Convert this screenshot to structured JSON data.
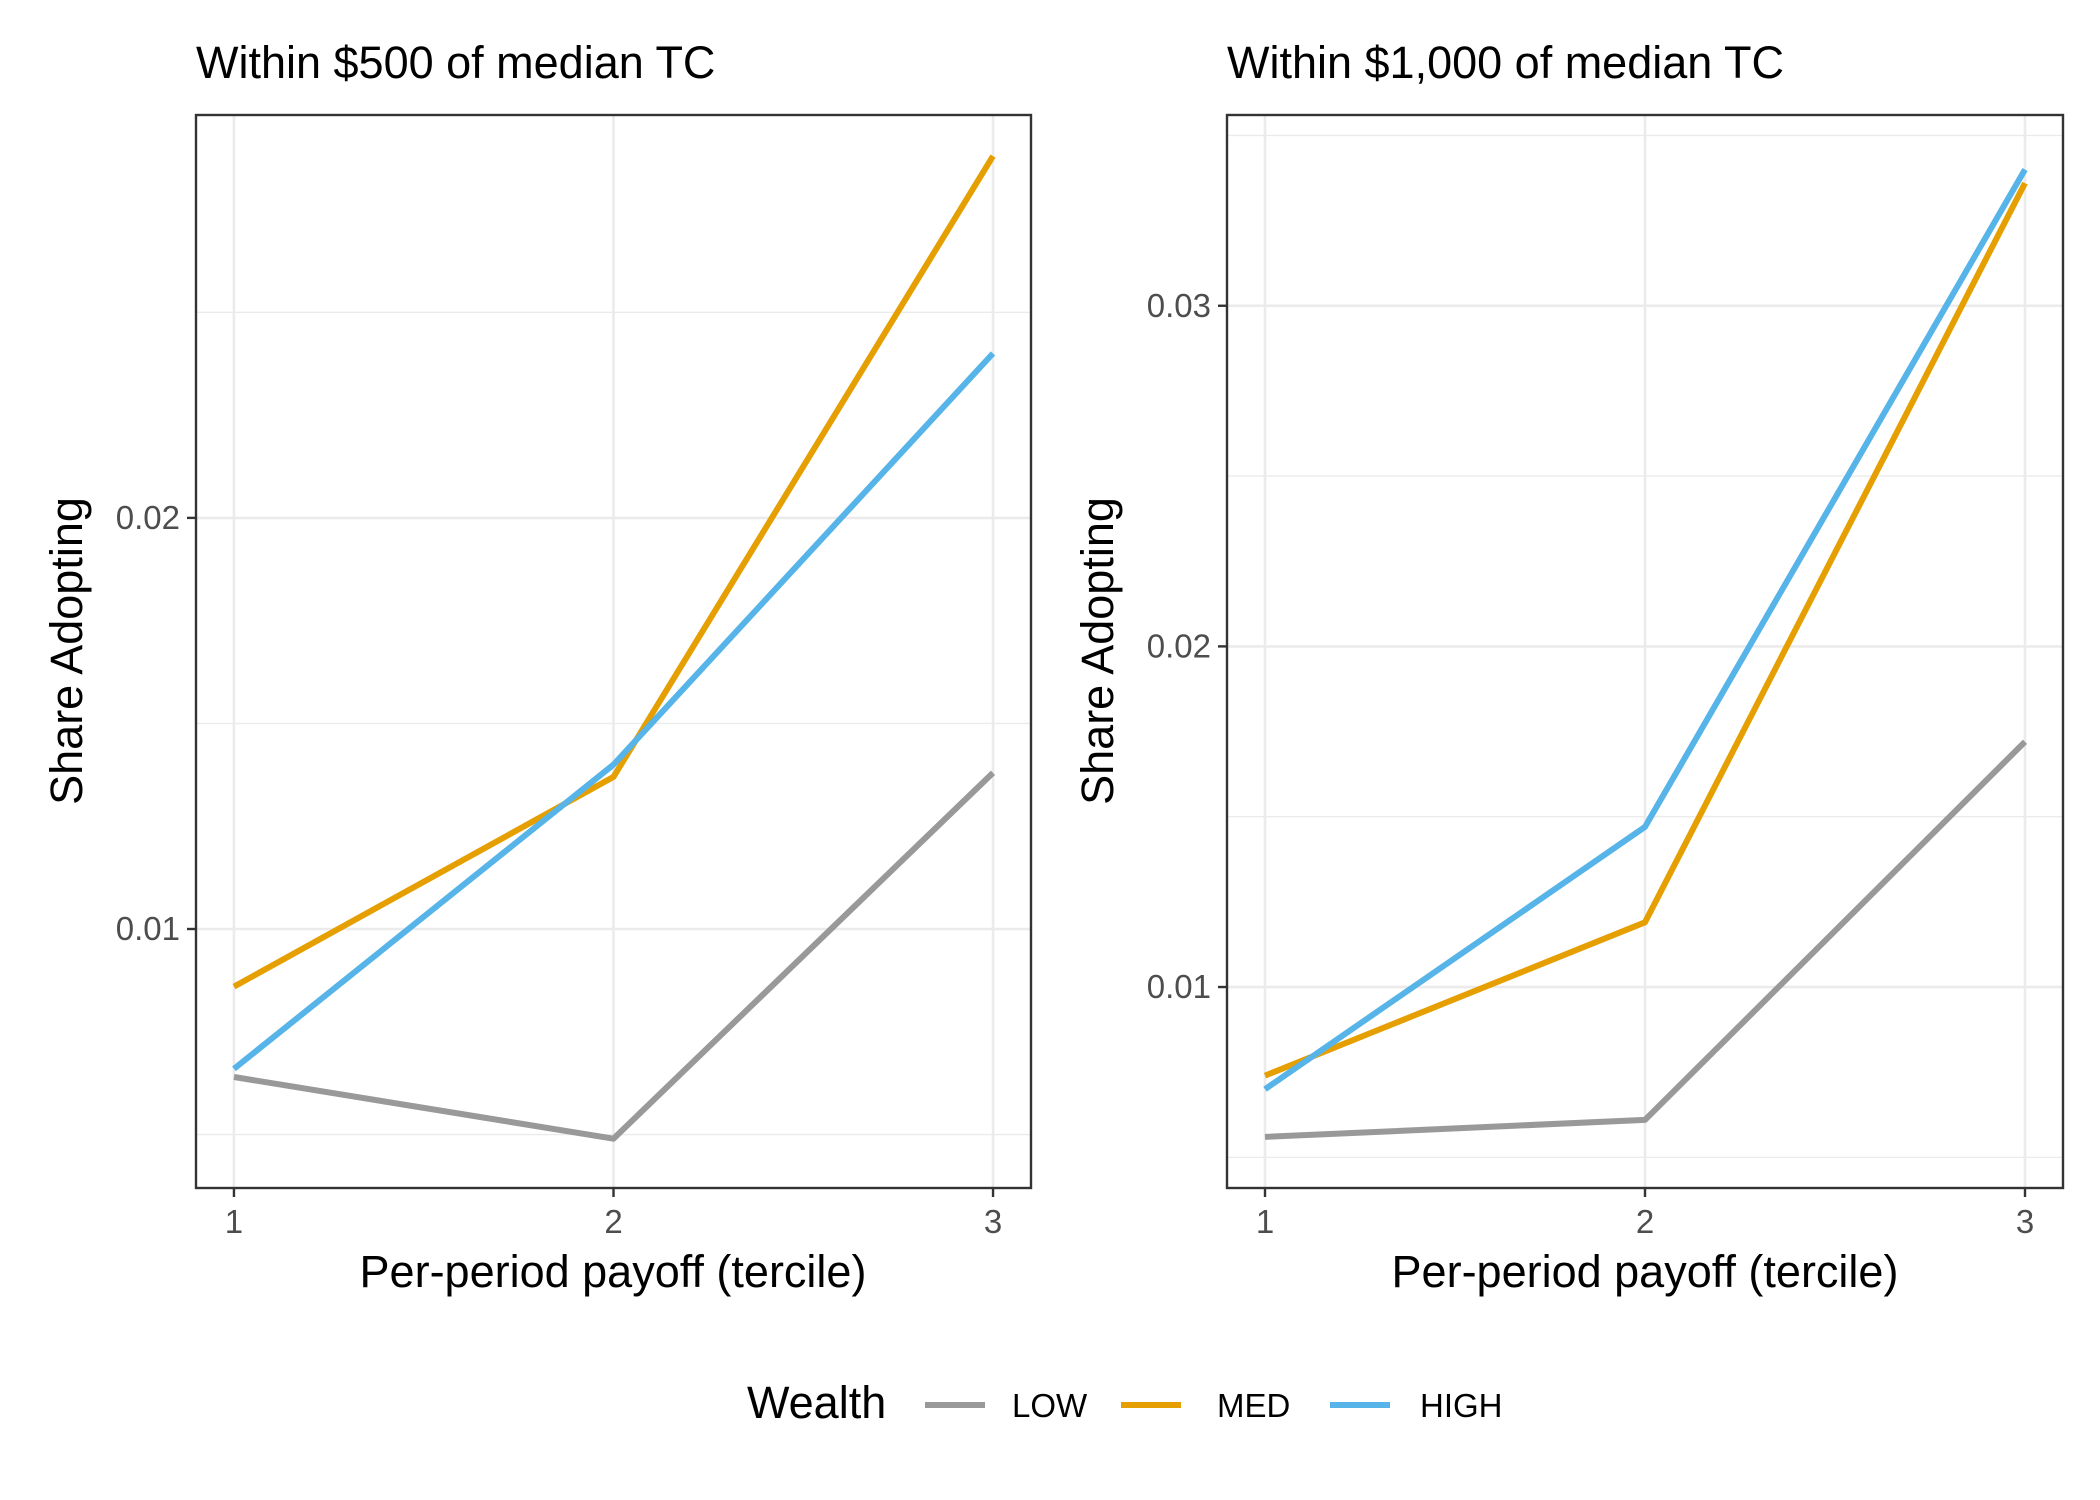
{
  "chart_data": [
    {
      "type": "line",
      "title": "Within $500 of median TC",
      "xlabel": "Per-period payoff (tercile)",
      "ylabel": "Share Adopting",
      "x": [
        1,
        2,
        3
      ],
      "x_tick_labels": [
        "1",
        "2",
        "3"
      ],
      "xlim": [
        0.9,
        3.1
      ],
      "ylim": [
        0.0037,
        0.0298
      ],
      "y_major_ticks": [
        0.01,
        0.02
      ],
      "y_tick_labels": [
        "0.01",
        "0.02"
      ],
      "y_minor_ticks": [
        0.005,
        0.015,
        0.025
      ],
      "grid": true,
      "series": [
        {
          "name": "LOW",
          "values": [
            0.0064,
            0.0049,
            0.0138
          ]
        },
        {
          "name": "MED",
          "values": [
            0.0086,
            0.0137,
            0.0288
          ]
        },
        {
          "name": "HIGH",
          "values": [
            0.0066,
            0.014,
            0.024
          ]
        }
      ]
    },
    {
      "type": "line",
      "title": "Within $1,000 of median TC",
      "xlabel": "Per-period payoff (tercile)",
      "ylabel": "Share Adopting",
      "x": [
        1,
        2,
        3
      ],
      "x_tick_labels": [
        "1",
        "2",
        "3"
      ],
      "xlim": [
        0.9,
        3.1
      ],
      "ylim": [
        0.0041,
        0.0356
      ],
      "y_major_ticks": [
        0.01,
        0.02,
        0.03
      ],
      "y_tick_labels": [
        "0.01",
        "0.02",
        "0.03"
      ],
      "y_minor_ticks": [
        0.005,
        0.015,
        0.025,
        0.035
      ],
      "grid": true,
      "series": [
        {
          "name": "LOW",
          "values": [
            0.0056,
            0.0061,
            0.0172
          ]
        },
        {
          "name": "MED",
          "values": [
            0.0074,
            0.0119,
            0.0336
          ]
        },
        {
          "name": "HIGH",
          "values": [
            0.007,
            0.0147,
            0.034
          ]
        }
      ]
    }
  ],
  "legend": {
    "title": "Wealth",
    "position": "bottom",
    "items": [
      {
        "label": "LOW",
        "color": "#999999"
      },
      {
        "label": "MED",
        "color": "#E69F00"
      },
      {
        "label": "HIGH",
        "color": "#56B4E9"
      }
    ]
  },
  "colors": {
    "LOW": "#999999",
    "MED": "#E69F00",
    "HIGH": "#56B4E9",
    "panel_border": "#333333",
    "grid": "#ebebeb",
    "tick_text": "#4d4d4d"
  }
}
